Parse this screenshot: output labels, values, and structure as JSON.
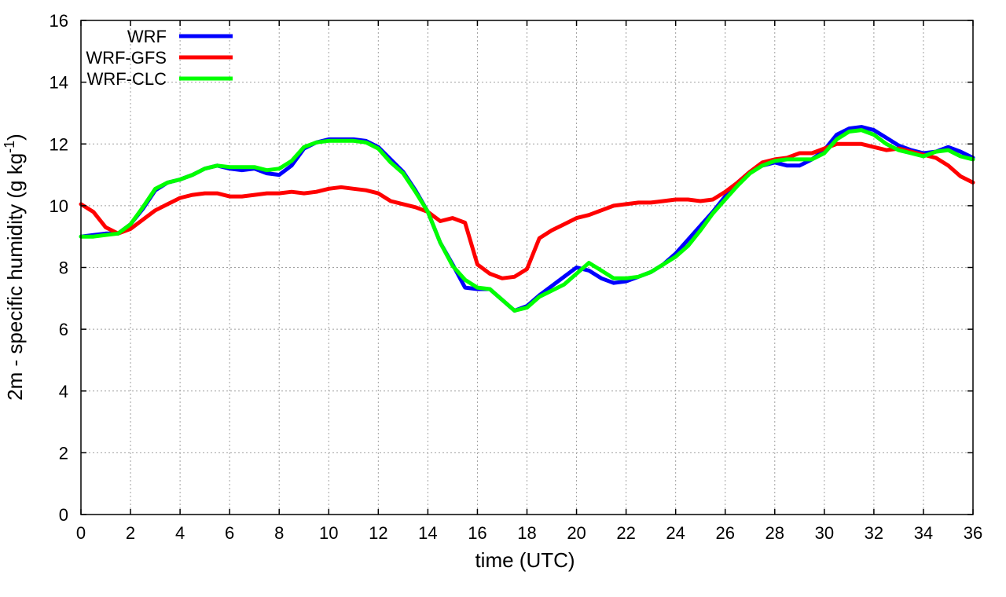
{
  "chart_data": {
    "type": "line",
    "xlabel": "time (UTC)",
    "ylabel_main": "2m - specific humidity (g kg",
    "ylabel_sup": "-1",
    "ylabel_tail": ")",
    "xlim": [
      0,
      36
    ],
    "ylim": [
      0,
      16
    ],
    "xticks": [
      0,
      2,
      4,
      6,
      8,
      10,
      12,
      14,
      16,
      18,
      20,
      22,
      24,
      26,
      28,
      30,
      32,
      34,
      36
    ],
    "yticks": [
      0,
      2,
      4,
      6,
      8,
      10,
      12,
      14,
      16
    ],
    "grid": true,
    "legend_position": "top-left",
    "series": [
      {
        "name": "WRF",
        "color": "#0000ff",
        "points": [
          [
            0,
            9.0
          ],
          [
            0.5,
            9.05
          ],
          [
            1,
            9.1
          ],
          [
            1.5,
            9.1
          ],
          [
            2,
            9.4
          ],
          [
            2.5,
            9.9
          ],
          [
            3,
            10.5
          ],
          [
            3.5,
            10.75
          ],
          [
            4,
            10.85
          ],
          [
            4.5,
            11.0
          ],
          [
            5,
            11.2
          ],
          [
            5.5,
            11.3
          ],
          [
            6,
            11.2
          ],
          [
            6.5,
            11.15
          ],
          [
            7,
            11.2
          ],
          [
            7.5,
            11.05
          ],
          [
            8,
            11.0
          ],
          [
            8.5,
            11.3
          ],
          [
            9,
            11.85
          ],
          [
            9.5,
            12.05
          ],
          [
            10,
            12.15
          ],
          [
            10.5,
            12.15
          ],
          [
            11,
            12.15
          ],
          [
            11.5,
            12.1
          ],
          [
            12,
            11.9
          ],
          [
            12.5,
            11.5
          ],
          [
            13,
            11.1
          ],
          [
            13.5,
            10.5
          ],
          [
            14,
            9.8
          ],
          [
            14.5,
            8.8
          ],
          [
            15,
            8.1
          ],
          [
            15.5,
            7.35
          ],
          [
            16,
            7.3
          ],
          [
            16.5,
            7.3
          ],
          [
            17,
            6.95
          ],
          [
            17.5,
            6.6
          ],
          [
            18,
            6.75
          ],
          [
            18.5,
            7.1
          ],
          [
            19,
            7.4
          ],
          [
            19.5,
            7.7
          ],
          [
            20,
            8.0
          ],
          [
            20.5,
            7.9
          ],
          [
            21,
            7.65
          ],
          [
            21.5,
            7.5
          ],
          [
            22,
            7.55
          ],
          [
            22.5,
            7.7
          ],
          [
            23,
            7.85
          ],
          [
            23.5,
            8.1
          ],
          [
            24,
            8.45
          ],
          [
            24.5,
            8.9
          ],
          [
            25,
            9.35
          ],
          [
            25.5,
            9.8
          ],
          [
            26,
            10.3
          ],
          [
            26.5,
            10.75
          ],
          [
            27,
            11.1
          ],
          [
            27.5,
            11.3
          ],
          [
            28,
            11.4
          ],
          [
            28.5,
            11.3
          ],
          [
            29,
            11.3
          ],
          [
            29.5,
            11.5
          ],
          [
            30,
            11.8
          ],
          [
            30.5,
            12.3
          ],
          [
            31,
            12.5
          ],
          [
            31.5,
            12.55
          ],
          [
            32,
            12.45
          ],
          [
            32.5,
            12.2
          ],
          [
            33,
            11.95
          ],
          [
            33.5,
            11.8
          ],
          [
            34,
            11.7
          ],
          [
            34.5,
            11.75
          ],
          [
            35,
            11.9
          ],
          [
            35.5,
            11.75
          ],
          [
            36,
            11.55
          ]
        ]
      },
      {
        "name": "WRF-GFS",
        "color": "#ff0000",
        "points": [
          [
            0,
            10.05
          ],
          [
            0.5,
            9.8
          ],
          [
            1,
            9.3
          ],
          [
            1.5,
            9.1
          ],
          [
            2,
            9.25
          ],
          [
            2.5,
            9.55
          ],
          [
            3,
            9.85
          ],
          [
            3.5,
            10.05
          ],
          [
            4,
            10.25
          ],
          [
            4.5,
            10.35
          ],
          [
            5,
            10.4
          ],
          [
            5.5,
            10.4
          ],
          [
            6,
            10.3
          ],
          [
            6.5,
            10.3
          ],
          [
            7,
            10.35
          ],
          [
            7.5,
            10.4
          ],
          [
            8,
            10.4
          ],
          [
            8.5,
            10.45
          ],
          [
            9,
            10.4
          ],
          [
            9.5,
            10.45
          ],
          [
            10,
            10.55
          ],
          [
            10.5,
            10.6
          ],
          [
            11,
            10.55
          ],
          [
            11.5,
            10.5
          ],
          [
            12,
            10.4
          ],
          [
            12.5,
            10.15
          ],
          [
            13,
            10.05
          ],
          [
            13.5,
            9.95
          ],
          [
            14,
            9.8
          ],
          [
            14.5,
            9.5
          ],
          [
            15,
            9.6
          ],
          [
            15.5,
            9.45
          ],
          [
            16,
            8.1
          ],
          [
            16.5,
            7.8
          ],
          [
            17,
            7.65
          ],
          [
            17.5,
            7.7
          ],
          [
            18,
            7.95
          ],
          [
            18.5,
            8.95
          ],
          [
            19,
            9.2
          ],
          [
            19.5,
            9.4
          ],
          [
            20,
            9.6
          ],
          [
            20.5,
            9.7
          ],
          [
            21,
            9.85
          ],
          [
            21.5,
            10.0
          ],
          [
            22,
            10.05
          ],
          [
            22.5,
            10.1
          ],
          [
            23,
            10.1
          ],
          [
            23.5,
            10.15
          ],
          [
            24,
            10.2
          ],
          [
            24.5,
            10.2
          ],
          [
            25,
            10.15
          ],
          [
            25.5,
            10.2
          ],
          [
            26,
            10.45
          ],
          [
            26.5,
            10.75
          ],
          [
            27,
            11.1
          ],
          [
            27.5,
            11.4
          ],
          [
            28,
            11.5
          ],
          [
            28.5,
            11.55
          ],
          [
            29,
            11.7
          ],
          [
            29.5,
            11.7
          ],
          [
            30,
            11.85
          ],
          [
            30.5,
            12.0
          ],
          [
            31,
            12.0
          ],
          [
            31.5,
            12.0
          ],
          [
            32,
            11.9
          ],
          [
            32.5,
            11.8
          ],
          [
            33,
            11.85
          ],
          [
            33.5,
            11.75
          ],
          [
            34,
            11.65
          ],
          [
            34.5,
            11.55
          ],
          [
            35,
            11.3
          ],
          [
            35.5,
            10.95
          ],
          [
            36,
            10.75
          ]
        ]
      },
      {
        "name": "WRF-CLC",
        "color": "#00ff00",
        "points": [
          [
            0,
            9.0
          ],
          [
            0.5,
            9.0
          ],
          [
            1,
            9.05
          ],
          [
            1.5,
            9.1
          ],
          [
            2,
            9.4
          ],
          [
            2.5,
            9.95
          ],
          [
            3,
            10.55
          ],
          [
            3.5,
            10.75
          ],
          [
            4,
            10.85
          ],
          [
            4.5,
            11.0
          ],
          [
            5,
            11.2
          ],
          [
            5.5,
            11.3
          ],
          [
            6,
            11.25
          ],
          [
            6.5,
            11.25
          ],
          [
            7,
            11.25
          ],
          [
            7.5,
            11.15
          ],
          [
            8,
            11.2
          ],
          [
            8.5,
            11.45
          ],
          [
            9,
            11.9
          ],
          [
            9.5,
            12.05
          ],
          [
            10,
            12.1
          ],
          [
            10.5,
            12.1
          ],
          [
            11,
            12.1
          ],
          [
            11.5,
            12.05
          ],
          [
            12,
            11.85
          ],
          [
            12.5,
            11.4
          ],
          [
            13,
            11.05
          ],
          [
            13.5,
            10.45
          ],
          [
            14,
            9.8
          ],
          [
            14.5,
            8.8
          ],
          [
            15,
            8.05
          ],
          [
            15.5,
            7.6
          ],
          [
            16,
            7.35
          ],
          [
            16.5,
            7.3
          ],
          [
            17,
            6.95
          ],
          [
            17.5,
            6.6
          ],
          [
            18,
            6.7
          ],
          [
            18.5,
            7.05
          ],
          [
            19,
            7.25
          ],
          [
            19.5,
            7.45
          ],
          [
            20,
            7.8
          ],
          [
            20.5,
            8.15
          ],
          [
            21,
            7.9
          ],
          [
            21.5,
            7.65
          ],
          [
            22,
            7.65
          ],
          [
            22.5,
            7.7
          ],
          [
            23,
            7.85
          ],
          [
            23.5,
            8.1
          ],
          [
            24,
            8.35
          ],
          [
            24.5,
            8.7
          ],
          [
            25,
            9.2
          ],
          [
            25.5,
            9.75
          ],
          [
            26,
            10.2
          ],
          [
            26.5,
            10.65
          ],
          [
            27,
            11.05
          ],
          [
            27.5,
            11.3
          ],
          [
            28,
            11.45
          ],
          [
            28.5,
            11.5
          ],
          [
            29,
            11.5
          ],
          [
            29.5,
            11.5
          ],
          [
            30,
            11.7
          ],
          [
            30.5,
            12.15
          ],
          [
            31,
            12.4
          ],
          [
            31.5,
            12.45
          ],
          [
            32,
            12.3
          ],
          [
            32.5,
            12.0
          ],
          [
            33,
            11.8
          ],
          [
            33.5,
            11.7
          ],
          [
            34,
            11.6
          ],
          [
            34.5,
            11.75
          ],
          [
            35,
            11.8
          ],
          [
            35.5,
            11.6
          ],
          [
            36,
            11.5
          ]
        ]
      }
    ]
  }
}
